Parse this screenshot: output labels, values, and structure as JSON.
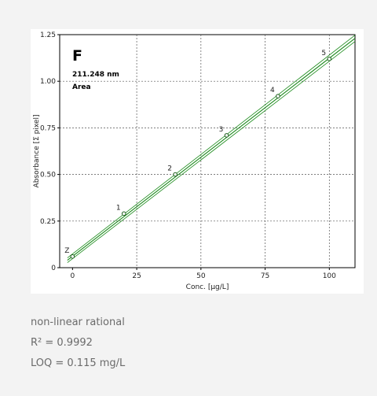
{
  "chart_data": {
    "type": "scatter",
    "element": "F",
    "wavelength": "211.248 nm",
    "mode": "Area",
    "xlabel": "Conc. [µg/L]",
    "ylabel": "Absorbance [Σ pixel]",
    "xlim": [
      -5,
      110
    ],
    "ylim": [
      0,
      1.25
    ],
    "x_ticks": [
      "0",
      "25",
      "50",
      "75",
      "100"
    ],
    "y_ticks": [
      "0",
      "0.25",
      "0.50",
      "0.75",
      "1.00",
      "1.25"
    ],
    "grid": true,
    "points": [
      {
        "label": "Z",
        "x": 0,
        "y": 0.06
      },
      {
        "label": "1",
        "x": 20,
        "y": 0.29
      },
      {
        "label": "2",
        "x": 40,
        "y": 0.5
      },
      {
        "label": "3",
        "x": 60,
        "y": 0.71
      },
      {
        "label": "4",
        "x": 80,
        "y": 0.92
      },
      {
        "label": "5",
        "x": 100,
        "y": 1.12
      }
    ],
    "fit": {
      "x": [
        -2,
        110
      ],
      "y": [
        0.04,
        1.23
      ]
    },
    "colors": {
      "fit": "#1a8a1a",
      "points": "#1a5a1a",
      "grid": "#555555"
    }
  },
  "summary": {
    "fit_type": "non-linear rational",
    "r_squared": "R² = 0.9992",
    "loq": "LOQ = 0.115 mg/L"
  }
}
